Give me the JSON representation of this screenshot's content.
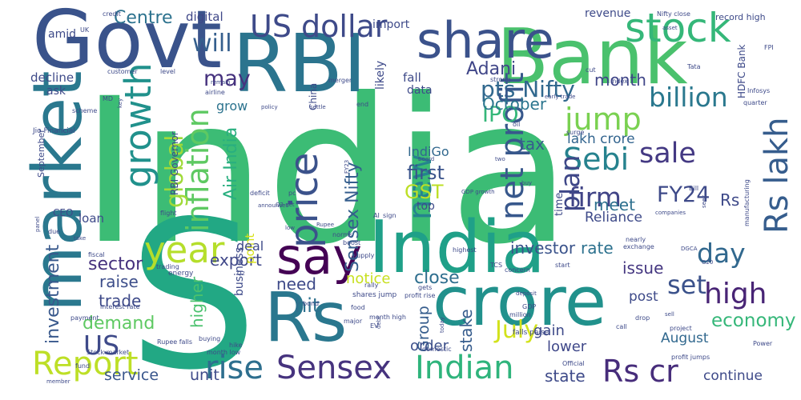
{
  "cloud": {
    "words": [
      {
        "text": "India",
        "color": "#3cbc75"
      },
      {
        "text": "S",
        "color": "#22a884"
      },
      {
        "text": "Govt",
        "color": "#3a538b"
      },
      {
        "text": "RBI",
        "color": "#2b748e"
      },
      {
        "text": "Bank",
        "color": "#4ac16d"
      },
      {
        "text": "market",
        "color": "#2a788e"
      },
      {
        "text": "India",
        "color": "#1fa088"
      },
      {
        "text": "Rs",
        "color": "#2a778e"
      },
      {
        "text": "crore",
        "color": "#21918c"
      },
      {
        "text": "share",
        "color": "#3b528b"
      },
      {
        "text": "say",
        "color": "#440154"
      },
      {
        "text": "stock",
        "color": "#35b779"
      },
      {
        "text": "US dollar",
        "color": "#3e4a89"
      },
      {
        "text": "pts Nifty",
        "color": "#31688e"
      },
      {
        "text": "Report",
        "color": "#bddf26"
      },
      {
        "text": "rise",
        "color": "#2e6f8e"
      },
      {
        "text": "Sensex",
        "color": "#46337e"
      },
      {
        "text": "Indian",
        "color": "#2fb47c"
      },
      {
        "text": "Rs cr",
        "color": "#472d7b"
      },
      {
        "text": "billion",
        "color": "#2a788e"
      },
      {
        "text": "price",
        "color": "#3b528b"
      },
      {
        "text": "growth",
        "color": "#21918c"
      },
      {
        "text": "inflation",
        "color": "#5ec962"
      },
      {
        "text": "Sebi",
        "color": "#26828e"
      },
      {
        "text": "net profit",
        "color": "#38588c"
      },
      {
        "text": "high",
        "color": "#482475"
      },
      {
        "text": "year",
        "color": "#b5de2b"
      },
      {
        "text": "new",
        "color": "#25838e"
      },
      {
        "text": "jump",
        "color": "#7ad151"
      },
      {
        "text": "sale",
        "color": "#443983"
      },
      {
        "text": "Rs lakh",
        "color": "#365d8d"
      },
      {
        "text": "firm",
        "color": "#414487"
      },
      {
        "text": "day",
        "color": "#31688e"
      },
      {
        "text": "set",
        "color": "#3b528b"
      },
      {
        "text": "US",
        "color": "#3e4a89"
      },
      {
        "text": "July",
        "color": "#d2e21b"
      },
      {
        "text": "economy",
        "color": "#35b779"
      },
      {
        "text": "Centre",
        "color": "#2c728e"
      },
      {
        "text": "will",
        "color": "#355f8d"
      },
      {
        "text": "may",
        "color": "#46327e"
      },
      {
        "text": "Air India",
        "color": "#29af7f"
      },
      {
        "text": "global",
        "color": "#a0da39"
      },
      {
        "text": "plan",
        "color": "#3f4788"
      },
      {
        "text": "FY24",
        "color": "#3e4a89"
      },
      {
        "text": "Adani",
        "color": "#404688"
      },
      {
        "text": "IPO",
        "color": "#35b779"
      },
      {
        "text": "October",
        "color": "#2b758e"
      },
      {
        "text": "month",
        "color": "#404688"
      },
      {
        "text": "tax",
        "color": "#365c8d"
      },
      {
        "text": "first",
        "color": "#3a538b"
      },
      {
        "text": "GST",
        "color": "#bddf26"
      },
      {
        "text": "Rs",
        "color": "#3e4989"
      },
      {
        "text": "meet",
        "color": "#2d708e"
      },
      {
        "text": "IndiGo",
        "color": "#31688e"
      },
      {
        "text": "lakh crore",
        "color": "#32648e"
      },
      {
        "text": "Reliance",
        "color": "#3e4a89"
      },
      {
        "text": "Sensex Nifty",
        "color": "#355e8d"
      },
      {
        "text": "investor",
        "color": "#3a538b"
      },
      {
        "text": "rate",
        "color": "#2c718e"
      },
      {
        "text": "sector",
        "color": "#46327e"
      },
      {
        "text": "export",
        "color": "#3f4788"
      },
      {
        "text": "raise",
        "color": "#3d4e8a"
      },
      {
        "text": "trade",
        "color": "#3e4a89"
      },
      {
        "text": "demand",
        "color": "#5ec962"
      },
      {
        "text": "investment",
        "color": "#38588c"
      },
      {
        "text": "need",
        "color": "#3e4a89"
      },
      {
        "text": "hit",
        "color": "#2d708e"
      },
      {
        "text": "close",
        "color": "#2e6e8e"
      },
      {
        "text": "issue",
        "color": "#453781"
      },
      {
        "text": "stake",
        "color": "#365c8d"
      },
      {
        "text": "service",
        "color": "#39568c"
      },
      {
        "text": "unit",
        "color": "#3e4a89"
      },
      {
        "text": "state",
        "color": "#3e4a89"
      },
      {
        "text": "higher",
        "color": "#4ac16d"
      },
      {
        "text": "Group",
        "color": "#365d8d"
      },
      {
        "text": "notice",
        "color": "#c8e020"
      },
      {
        "text": "order",
        "color": "#3c4f8a"
      },
      {
        "text": "gain",
        "color": "#3e4a89"
      },
      {
        "text": "lower",
        "color": "#3f4889"
      },
      {
        "text": "August",
        "color": "#31688e"
      },
      {
        "text": "post",
        "color": "#3e4a89"
      },
      {
        "text": "continue",
        "color": "#3e4a89"
      },
      {
        "text": "point",
        "color": "#d8e219"
      },
      {
        "text": "deal",
        "color": "#3e4a89"
      },
      {
        "text": "business",
        "color": "#3e4a89"
      },
      {
        "text": "loan",
        "color": "#3e4a89"
      },
      {
        "text": "grow",
        "color": "#2c738e"
      },
      {
        "text": "digital",
        "color": "#3f4788"
      },
      {
        "text": "import",
        "color": "#3e4a89"
      },
      {
        "text": "revenue",
        "color": "#3e4a89"
      },
      {
        "text": "fall",
        "color": "#3e4a89"
      },
      {
        "text": "likely",
        "color": "#3e4a89"
      },
      {
        "text": "data",
        "color": "#3e4a89"
      },
      {
        "text": "decline",
        "color": "#3e4a89"
      },
      {
        "text": "ask",
        "color": "#3e4a89"
      },
      {
        "text": "amid",
        "color": "#3e4a89"
      },
      {
        "text": "RBI Governor",
        "color": "#3e4a89"
      },
      {
        "text": "China",
        "color": "#3e4a89"
      },
      {
        "text": "HDFC Bank",
        "color": "#3e4a89"
      },
      {
        "text": "September",
        "color": "#3e4a89"
      },
      {
        "text": "CEO",
        "color": "#3e4a89"
      },
      {
        "text": "top",
        "color": "#3e4a89"
      },
      {
        "text": "Nifty close",
        "color": "#3e4a89"
      },
      {
        "text": "record high",
        "color": "#3e4a89"
      },
      {
        "text": "time",
        "color": "#3e4a89"
      },
      {
        "text": "credit",
        "color": "#3e4a89"
      },
      {
        "text": "UK",
        "color": "#3e4a89"
      },
      {
        "text": "asset",
        "color": "#3e4a89"
      },
      {
        "text": "Tata",
        "color": "#3e4a89"
      },
      {
        "text": "Infosys",
        "color": "#3e4a89"
      },
      {
        "text": "quarter",
        "color": "#3e4a89"
      },
      {
        "text": "FPI",
        "color": "#3e4a89"
      },
      {
        "text": "customer",
        "color": "#3e4a89"
      },
      {
        "text": "level",
        "color": "#3e4a89"
      },
      {
        "text": "remain",
        "color": "#3e4a89"
      },
      {
        "text": "merger",
        "color": "#3e4a89"
      },
      {
        "text": "strong",
        "color": "#3e4a89"
      },
      {
        "text": "cut",
        "color": "#3e4a89"
      },
      {
        "text": "index",
        "color": "#3e4a89"
      },
      {
        "text": "early trade",
        "color": "#3e4a89"
      },
      {
        "text": "Jio Financial",
        "color": "#3e4a89"
      },
      {
        "text": "MD",
        "color": "#3e4a89"
      },
      {
        "text": "airline",
        "color": "#3e4a89"
      },
      {
        "text": "scheme",
        "color": "#3e4a89"
      },
      {
        "text": "key",
        "color": "#3e4a89"
      },
      {
        "text": "policy",
        "color": "#3e4a89"
      },
      {
        "text": "settle",
        "color": "#3e4a89"
      },
      {
        "text": "end",
        "color": "#3e4a89"
      },
      {
        "text": "oil",
        "color": "#3e4a89"
      },
      {
        "text": "surge",
        "color": "#3e4a89"
      },
      {
        "text": "board",
        "color": "#3e4a89"
      },
      {
        "text": "FY23",
        "color": "#3e4a89"
      },
      {
        "text": "two",
        "color": "#3e4a89"
      },
      {
        "text": "buy",
        "color": "#3e4a89"
      },
      {
        "text": "GDP growth",
        "color": "#3e4a89"
      },
      {
        "text": "Bill",
        "color": "#3e4a89"
      },
      {
        "text": "companies",
        "color": "#3e4a89"
      },
      {
        "text": "seek",
        "color": "#3e4a89"
      },
      {
        "text": "manufacturing",
        "color": "#3e4a89"
      },
      {
        "text": "deficit",
        "color": "#3e4a89"
      },
      {
        "text": "pc",
        "color": "#3e4a89"
      },
      {
        "text": "Q2 net",
        "color": "#3e4a89"
      },
      {
        "text": "flight",
        "color": "#3e4a89"
      },
      {
        "text": "panel",
        "color": "#3e4a89"
      },
      {
        "text": "due",
        "color": "#3e4a89"
      },
      {
        "text": "take",
        "color": "#3e4a89"
      },
      {
        "text": "fiscal",
        "color": "#3e4a89"
      },
      {
        "text": "trading",
        "color": "#3e4a89"
      },
      {
        "text": "energy",
        "color": "#3e4a89"
      },
      {
        "text": "Q2",
        "color": "#3e4a89"
      },
      {
        "text": "Rupee",
        "color": "#3e4a89"
      },
      {
        "text": "low",
        "color": "#3e4a89"
      },
      {
        "text": "norms",
        "color": "#3e4a89"
      },
      {
        "text": "boost",
        "color": "#3e4a89"
      },
      {
        "text": "supply",
        "color": "#3e4a89"
      },
      {
        "text": "highest",
        "color": "#3e4a89"
      },
      {
        "text": "TCS",
        "color": "#3e4a89"
      },
      {
        "text": "concern",
        "color": "#3e4a89"
      },
      {
        "text": "start",
        "color": "#3e4a89"
      },
      {
        "text": "nearly",
        "color": "#3e4a89"
      },
      {
        "text": "exchange",
        "color": "#3e4a89"
      },
      {
        "text": "DGCA",
        "color": "#3e4a89"
      },
      {
        "text": "G20",
        "color": "#3e4a89"
      },
      {
        "text": "interest rate",
        "color": "#3e4a89"
      },
      {
        "text": "payment",
        "color": "#3e4a89"
      },
      {
        "text": "Stock market",
        "color": "#3e4a89"
      },
      {
        "text": "fund",
        "color": "#3e4a89"
      },
      {
        "text": "member",
        "color": "#3e4a89"
      },
      {
        "text": "hike",
        "color": "#3e4a89"
      },
      {
        "text": "month low",
        "color": "#3e4a89"
      },
      {
        "text": "Rupee falls",
        "color": "#3e4a89"
      },
      {
        "text": "buying",
        "color": "#3e4a89"
      },
      {
        "text": "bond",
        "color": "#3e4a89"
      },
      {
        "text": "shares jump",
        "color": "#3e4a89"
      },
      {
        "text": "profit rise",
        "color": "#3e4a89"
      },
      {
        "text": "month high",
        "color": "#3e4a89"
      },
      {
        "text": "major",
        "color": "#3e4a89"
      },
      {
        "text": "EV",
        "color": "#3e4a89"
      },
      {
        "text": "debt",
        "color": "#3e4a89"
      },
      {
        "text": "today",
        "color": "#3e4a89"
      },
      {
        "text": "deposit",
        "color": "#3e4a89"
      },
      {
        "text": "million",
        "color": "#3e4a89"
      },
      {
        "text": "falls paise",
        "color": "#3e4a89"
      },
      {
        "text": "Official",
        "color": "#3e4a89"
      },
      {
        "text": "domestic",
        "color": "#3e4a89"
      },
      {
        "text": "drop",
        "color": "#3e4a89"
      },
      {
        "text": "call",
        "color": "#3e4a89"
      },
      {
        "text": "project",
        "color": "#3e4a89"
      },
      {
        "text": "sell",
        "color": "#3e4a89"
      },
      {
        "text": "profit jumps",
        "color": "#3e4a89"
      },
      {
        "text": "Power",
        "color": "#3e4a89"
      },
      {
        "text": "food",
        "color": "#3e4a89"
      },
      {
        "text": "gets",
        "color": "#3e4a89"
      },
      {
        "text": "AI",
        "color": "#3e4a89"
      },
      {
        "text": "sign",
        "color": "#3e4a89"
      },
      {
        "text": "rally",
        "color": "#3e4a89"
      },
      {
        "text": "announces",
        "color": "#3e4a89"
      },
      {
        "text": "GDP",
        "color": "#3e4a89"
      }
    ]
  }
}
